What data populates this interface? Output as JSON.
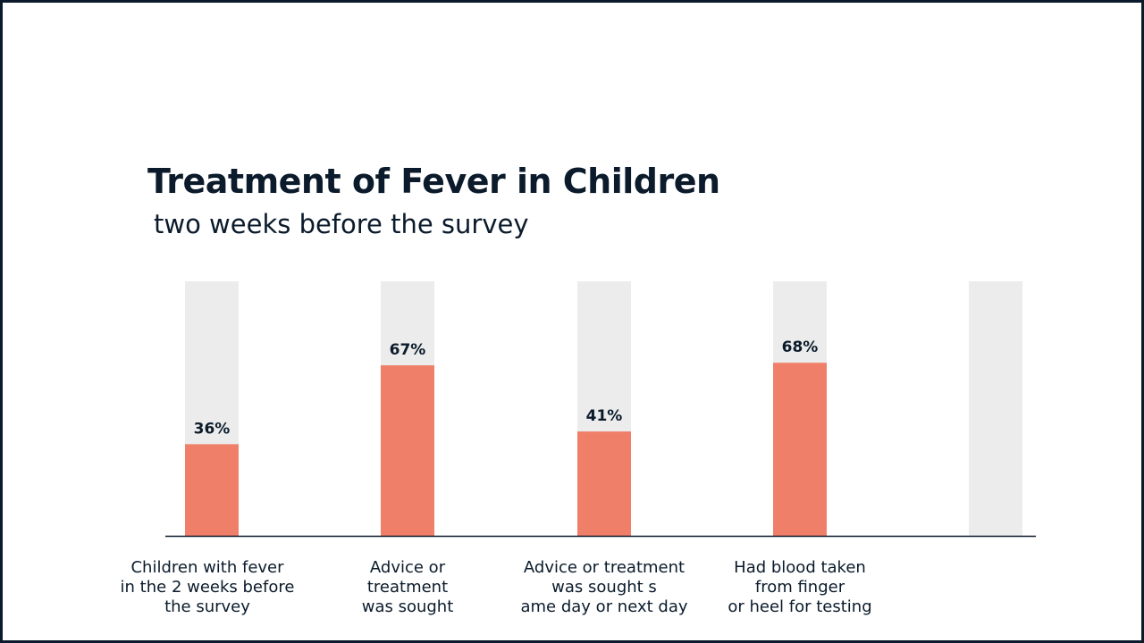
{
  "chart_data": {
    "type": "bar",
    "title": "Treatment of Fever in Children",
    "subtitle": "two weeks before the survey",
    "categories": [
      "Children with fever\nin the 2 weeks before\nthe survey",
      "Advice or\ntreatment\nwas sought",
      "Advice or treatment\nwas sought s\name day or next day",
      "Had blood taken\nfrom finger\nor heel for testing",
      ""
    ],
    "values": [
      36,
      67,
      41,
      68,
      null
    ],
    "value_labels": [
      "36%",
      "67%",
      "41%",
      "68%",
      ""
    ],
    "ylim": [
      0,
      100
    ],
    "grid": false,
    "legend": "none",
    "colors": {
      "bar": "#ef7f68",
      "track": "#ececec",
      "axis": "#0b1b2b",
      "text": "#0b1b2b"
    }
  }
}
